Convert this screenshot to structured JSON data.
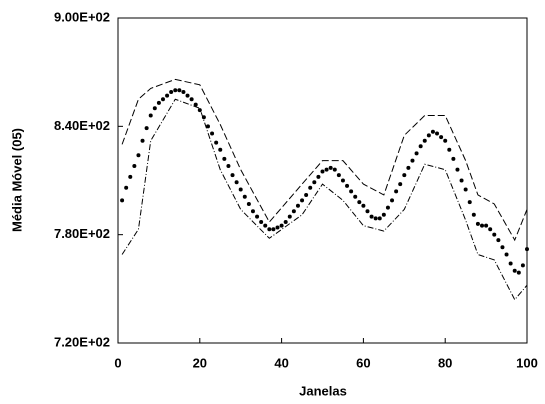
{
  "chart_data": {
    "type": "line",
    "xlabel": "Janelas",
    "ylabel": "Média Móvel (05)",
    "xlim": [
      0,
      100
    ],
    "xticks": [
      0,
      20,
      40,
      60,
      80,
      100
    ],
    "ylim": [
      720,
      900
    ],
    "yticks": [
      {
        "value": 720,
        "label": "7.20E+02"
      },
      {
        "value": 780,
        "label": "7.80E+02"
      },
      {
        "value": 840,
        "label": "8.40E+02"
      },
      {
        "value": 900,
        "label": "9.00E+02"
      }
    ],
    "series": [
      {
        "color": "#000000",
        "style": "dots",
        "x": [
          1,
          2,
          3,
          4,
          5,
          6,
          7,
          8,
          9,
          10,
          11,
          12,
          13,
          14,
          15,
          16,
          17,
          18,
          19,
          20,
          21,
          22,
          23,
          24,
          25,
          26,
          27,
          28,
          29,
          30,
          31,
          32,
          33,
          34,
          35,
          36,
          37,
          38,
          39,
          40,
          41,
          42,
          43,
          44,
          45,
          46,
          47,
          48,
          49,
          50,
          51,
          52,
          53,
          54,
          55,
          56,
          57,
          58,
          59,
          60,
          61,
          62,
          63,
          64,
          65,
          66,
          67,
          68,
          69,
          70,
          71,
          72,
          73,
          74,
          75,
          76,
          77,
          78,
          79,
          80,
          81,
          82,
          83,
          84,
          85,
          86,
          87,
          88,
          89,
          90,
          91,
          92,
          93,
          94,
          95,
          96,
          97,
          98,
          99,
          100
        ],
        "values": [
          799,
          806,
          812,
          818,
          824,
          832,
          839,
          846,
          850,
          853,
          855,
          857,
          859,
          860,
          860,
          859,
          857,
          855,
          852,
          849,
          845,
          840,
          836,
          831,
          827,
          822,
          818,
          813,
          809,
          805,
          801,
          797,
          793,
          790,
          787,
          785,
          783,
          783,
          784,
          785,
          787,
          790,
          793,
          796,
          799,
          802,
          806,
          809,
          812,
          815,
          816,
          817,
          816,
          813,
          810,
          807,
          804,
          801,
          798,
          796,
          793,
          790,
          789,
          789,
          791,
          795,
          799,
          804,
          808,
          813,
          817,
          821,
          825,
          829,
          832,
          835,
          837,
          836,
          834,
          832,
          827,
          822,
          816,
          810,
          805,
          798,
          791,
          786,
          785,
          785,
          783,
          780,
          777,
          773,
          769,
          764,
          760,
          759,
          763,
          772
        ]
      },
      {
        "color": "#000000",
        "style": "dashed",
        "x": [
          1,
          5,
          8,
          14,
          20,
          25,
          30,
          37,
          45,
          50,
          55,
          60,
          65,
          70,
          75,
          80,
          85,
          88,
          92,
          97,
          100
        ],
        "values": [
          830,
          855,
          861,
          866,
          863,
          841,
          816,
          787,
          808,
          821,
          821,
          808,
          802,
          835,
          846,
          846,
          821,
          802,
          797,
          777,
          794
        ]
      },
      {
        "color": "#000000",
        "style": "dashdot",
        "x": [
          1,
          5,
          8,
          14,
          20,
          25,
          30,
          37,
          45,
          50,
          55,
          60,
          65,
          70,
          75,
          80,
          85,
          88,
          92,
          97,
          100
        ],
        "values": [
          769,
          783,
          832,
          855,
          850,
          816,
          794,
          778,
          791,
          808,
          799,
          785,
          782,
          794,
          819,
          816,
          788,
          769,
          766,
          744,
          752
        ]
      }
    ]
  }
}
